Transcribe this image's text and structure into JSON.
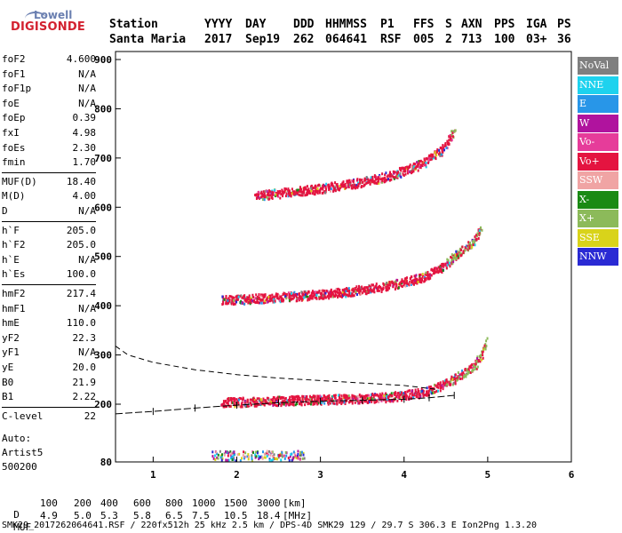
{
  "logo": {
    "line1": "Lowell",
    "line2": "DIGISONDE"
  },
  "header": {
    "labels": [
      "Station",
      "YYYY",
      "DAY",
      "DDD",
      "HHMMSS",
      "P1",
      "FFS",
      "S",
      "AXN",
      "PPS",
      "IGA",
      "PS"
    ],
    "values": [
      "Santa Maria",
      "2017",
      "Sep19",
      "262",
      "064641",
      "RSF",
      "005",
      "2",
      "713",
      "100",
      "03+",
      "36"
    ]
  },
  "params": [
    {
      "label": "foF2",
      "value": "4.600"
    },
    {
      "label": "foF1",
      "value": "N/A"
    },
    {
      "label": "foF1p",
      "value": "N/A"
    },
    {
      "label": "foE",
      "value": "N/A"
    },
    {
      "label": "foEp",
      "value": "0.39"
    },
    {
      "label": "fxI",
      "value": "4.98"
    },
    {
      "label": "foEs",
      "value": "2.30"
    },
    {
      "label": "fmin",
      "value": "1.70"
    },
    {
      "label": "MUF(D)",
      "value": "18.40"
    },
    {
      "label": "M(D)",
      "value": "4.00"
    },
    {
      "label": "D",
      "value": "N/A"
    },
    {
      "label": "h`F",
      "value": "205.0"
    },
    {
      "label": "h`F2",
      "value": "205.0"
    },
    {
      "label": "h`E",
      "value": "N/A"
    },
    {
      "label": "h`Es",
      "value": "100.0"
    },
    {
      "label": "hmF2",
      "value": "217.4"
    },
    {
      "label": "hmF1",
      "value": "N/A"
    },
    {
      "label": "hmE",
      "value": "110.0"
    },
    {
      "label": "yF2",
      "value": "22.3"
    },
    {
      "label": "yF1",
      "value": "N/A"
    },
    {
      "label": "yE",
      "value": "20.0"
    },
    {
      "label": "B0",
      "value": "21.9"
    },
    {
      "label": "B1",
      "value": "2.22"
    },
    {
      "label": "C-level",
      "value": "22"
    }
  ],
  "autoscaling": {
    "line1": "Auto:",
    "line2": "Artist5",
    "line3": "500200"
  },
  "legend": [
    {
      "label": "NoVal",
      "color": "#7f7f7f"
    },
    {
      "label": "NNE",
      "color": "#1ed2ee"
    },
    {
      "label": "E",
      "color": "#2896e8"
    },
    {
      "label": "W",
      "color": "#b0139e"
    },
    {
      "label": "Vo-",
      "color": "#e63c9a"
    },
    {
      "label": "Vo+",
      "color": "#e41440"
    },
    {
      "label": "SSW",
      "color": "#f0a4a4"
    },
    {
      "label": "X-",
      "color": "#1a8a14"
    },
    {
      "label": "X+",
      "color": "#8cba5a"
    },
    {
      "label": "SSE",
      "color": "#d9d31a"
    },
    {
      "label": "NNW",
      "color": "#2a2ad4"
    }
  ],
  "footer": {
    "d_label": "D",
    "d_values": [
      "100",
      "200",
      "400",
      "600",
      "800",
      "1000",
      "1500",
      "3000",
      "[km]"
    ],
    "muf_label": "MUF",
    "muf_values": [
      "4.9",
      "5.0",
      "5.3",
      "5.8",
      "6.5",
      "7.5",
      "10.5",
      "18.4",
      "[MHz]"
    ],
    "file_line": "SMK29_2017262064641.RSF / 220fx512h 25 kHz 2.5 km / DPS-4D SMK29 129 / 29.7 S 306.3 E Ion2Png 1.3.20"
  },
  "chart_data": {
    "type": "scatter",
    "xlim": [
      0.55,
      6.0
    ],
    "ylim": [
      80,
      900
    ],
    "x_ticks": [
      "1",
      "2",
      "3",
      "4",
      "5",
      "6"
    ],
    "y_ticks": [
      "80",
      "200",
      "300",
      "400",
      "500",
      "600",
      "700",
      "800",
      "900"
    ],
    "series": [
      {
        "x": [
          1.8,
          2.2,
          2.6,
          3.0,
          3.4,
          3.8,
          4.2,
          4.45,
          4.6,
          4.8,
          4.9,
          4.97
        ],
        "y": [
          205,
          207,
          209,
          211,
          213,
          216,
          225,
          240,
          255,
          275,
          300,
          330
        ]
      },
      {
        "x": [
          1.8,
          2.2,
          2.6,
          3.0,
          3.4,
          3.8,
          4.2,
          4.45,
          4.6,
          4.8,
          4.9
        ],
        "y": [
          413,
          416,
          420,
          425,
          432,
          442,
          460,
          480,
          505,
          530,
          560
        ]
      },
      {
        "x": [
          2.2,
          2.6,
          3.0,
          3.4,
          3.8,
          4.2,
          4.45,
          4.6
        ],
        "y": [
          625,
          632,
          640,
          650,
          665,
          690,
          720,
          760
        ]
      },
      {
        "x": [
          0.55,
          0.7,
          1.0,
          1.5,
          2.0,
          2.5,
          3.0,
          3.5,
          4.0,
          4.4
        ],
        "y": [
          318,
          300,
          285,
          270,
          260,
          253,
          248,
          243,
          238,
          230
        ]
      },
      {
        "x": [
          0.55,
          1.0,
          1.5,
          2.0,
          2.5,
          3.0,
          3.5,
          4.0,
          4.3,
          4.6
        ],
        "y": [
          180,
          185,
          192,
          198,
          203,
          206,
          208,
          210,
          213,
          218
        ]
      }
    ]
  }
}
